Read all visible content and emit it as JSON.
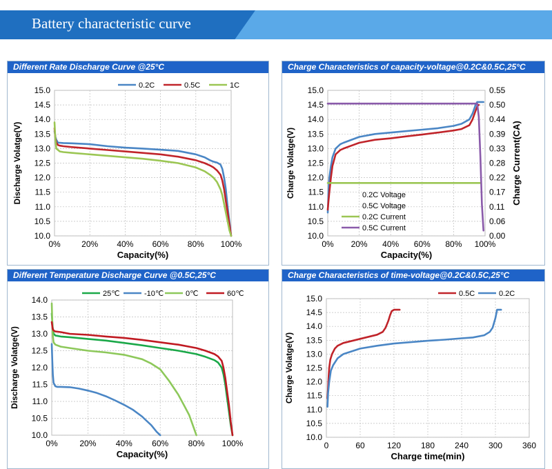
{
  "banner": {
    "title": "Battery characteristic curve"
  },
  "colors": {
    "blue": "#4a86c5",
    "red": "#c0242a",
    "lime": "#9bc653",
    "green": "#1aa848",
    "darkred": "#c01a22",
    "purple": "#8a5aaa",
    "lightgreen": "#8dc85a"
  },
  "chart_data": [
    {
      "type": "line",
      "title": "Different Rate Discharge Curve @25°C",
      "xlabel": "Capacity(%)",
      "ylabel": "Discharge Volatge(V)",
      "xlim": [
        0,
        100
      ],
      "ylim": [
        10.0,
        15.0
      ],
      "xticks": [
        "0%",
        "20%",
        "40%",
        "60%",
        "80%",
        "100%"
      ],
      "yticks": [
        "10.0",
        "10.5",
        "11.0",
        "11.5",
        "12.0",
        "12.5",
        "13.0",
        "13.5",
        "14.0",
        "14.5",
        "15.0"
      ],
      "legend": [
        "0.2C",
        "0.5C",
        "1C"
      ],
      "series": [
        {
          "name": "0.2C",
          "color": "blue",
          "x": [
            0,
            0.5,
            1,
            2,
            3,
            5,
            10,
            20,
            30,
            40,
            50,
            60,
            70,
            80,
            85,
            88,
            90,
            92,
            94,
            95,
            96,
            97,
            98,
            99,
            100
          ],
          "y": [
            13.6,
            13.4,
            13.3,
            13.2,
            13.2,
            13.19,
            13.18,
            13.15,
            13.08,
            13.03,
            13.0,
            12.96,
            12.92,
            12.8,
            12.7,
            12.6,
            12.55,
            12.52,
            12.45,
            12.3,
            12.0,
            11.6,
            11.0,
            10.5,
            10.0
          ]
        },
        {
          "name": "0.5C",
          "color": "red",
          "x": [
            0,
            0.5,
            1,
            2,
            3,
            5,
            10,
            20,
            30,
            40,
            50,
            60,
            70,
            80,
            85,
            88,
            90,
            92,
            94,
            95,
            96,
            97,
            98,
            99,
            100
          ],
          "y": [
            13.7,
            13.35,
            13.2,
            13.12,
            13.1,
            13.08,
            13.05,
            13.0,
            12.95,
            12.9,
            12.85,
            12.8,
            12.72,
            12.6,
            12.5,
            12.42,
            12.35,
            12.25,
            12.1,
            11.9,
            11.6,
            11.2,
            10.8,
            10.4,
            10.0
          ]
        },
        {
          "name": "1C",
          "color": "lime",
          "x": [
            0,
            0.5,
            1,
            2,
            3,
            5,
            10,
            20,
            30,
            40,
            50,
            60,
            70,
            80,
            85,
            88,
            90,
            92,
            94,
            95,
            96,
            97,
            98,
            99,
            100
          ],
          "y": [
            13.9,
            13.3,
            13.0,
            12.95,
            12.9,
            12.88,
            12.85,
            12.8,
            12.75,
            12.7,
            12.65,
            12.58,
            12.5,
            12.35,
            12.22,
            12.1,
            12.0,
            11.85,
            11.6,
            11.4,
            11.1,
            10.8,
            10.5,
            10.2,
            10.0
          ]
        }
      ]
    },
    {
      "type": "line",
      "title": "Charge Characteristics of capacity-voltage@0.2C&0.5C,25°C",
      "xlabel": "Capacity(%)",
      "ylabel": "Charge Volatge(V)",
      "y2label": "Charge Current(CA)",
      "xlim": [
        0,
        100
      ],
      "ylim": [
        10.0,
        15.0
      ],
      "y2lim": [
        0.0,
        0.55
      ],
      "xticks": [
        "0%",
        "20%",
        "40%",
        "60%",
        "80%",
        "100%"
      ],
      "yticks": [
        "10.0",
        "10.5",
        "11.0",
        "11.5",
        "12.0",
        "12.5",
        "13.0",
        "13.5",
        "14.0",
        "14.5",
        "15.0"
      ],
      "y2ticks": [
        "0.00",
        "0.06",
        "0.11",
        "0.17",
        "0.22",
        "0.28",
        "0.33",
        "0.39",
        "0.44",
        "0.50",
        "0.55"
      ],
      "legend": [
        "0.2C Voltage",
        "0.5C Voltage",
        "0.2C Current",
        "0.5C Current"
      ],
      "series": [
        {
          "name": "0.2C Voltage",
          "color": "blue",
          "axis": "left",
          "x": [
            0,
            0.5,
            1,
            2,
            3,
            5,
            8,
            10,
            20,
            30,
            40,
            50,
            60,
            70,
            80,
            85,
            90,
            92,
            94,
            95,
            97,
            99
          ],
          "y": [
            10.8,
            11.5,
            12.0,
            12.4,
            12.7,
            13.0,
            13.15,
            13.2,
            13.4,
            13.5,
            13.55,
            13.6,
            13.65,
            13.7,
            13.78,
            13.85,
            14.0,
            14.2,
            14.5,
            14.6,
            14.6,
            14.6
          ]
        },
        {
          "name": "0.5C Voltage",
          "color": "red",
          "axis": "left",
          "x": [
            0,
            0.5,
            1,
            2,
            3,
            5,
            8,
            10,
            20,
            30,
            40,
            50,
            60,
            70,
            80,
            85,
            90,
            92,
            94,
            95,
            96
          ],
          "y": [
            10.9,
            11.2,
            11.5,
            12.0,
            12.4,
            12.8,
            12.95,
            13.0,
            13.2,
            13.3,
            13.35,
            13.42,
            13.48,
            13.55,
            13.62,
            13.67,
            13.8,
            14.0,
            14.3,
            14.45,
            14.5
          ]
        },
        {
          "name": "0.2C Current",
          "color": "lime",
          "axis": "right",
          "x": [
            0,
            97
          ],
          "y": [
            0.2,
            0.2
          ]
        },
        {
          "name": "0.5C Current",
          "color": "purple",
          "axis": "right",
          "x": [
            0,
            95,
            96,
            97,
            98,
            99
          ],
          "y": [
            0.5,
            0.5,
            0.45,
            0.3,
            0.12,
            0.02
          ]
        }
      ]
    },
    {
      "type": "line",
      "title": "Different Temperature Discharge Curve @0.5C,25°C",
      "xlabel": "Capacity(%)",
      "ylabel": "Discharge Volatge(V)",
      "xlim": [
        0,
        100
      ],
      "ylim": [
        10.0,
        14.0
      ],
      "xticks": [
        "0%",
        "20%",
        "40%",
        "60%",
        "80%",
        "100%"
      ],
      "yticks": [
        "10.0",
        "10.5",
        "11.0",
        "11.5",
        "12.0",
        "12.5",
        "13.0",
        "13.5",
        "14.0"
      ],
      "legend": [
        "25℃",
        "-10℃",
        "0℃",
        "60℃"
      ],
      "series": [
        {
          "name": "25℃",
          "color": "green",
          "x": [
            0,
            0.5,
            1,
            2,
            5,
            10,
            20,
            30,
            40,
            50,
            60,
            70,
            80,
            85,
            90,
            92,
            94,
            95,
            96,
            97,
            98,
            99,
            100
          ],
          "y": [
            13.6,
            13.2,
            13.0,
            12.95,
            12.92,
            12.9,
            12.85,
            12.8,
            12.73,
            12.66,
            12.58,
            12.5,
            12.4,
            12.32,
            12.22,
            12.15,
            12.0,
            11.8,
            11.5,
            11.1,
            10.7,
            10.3,
            10.0
          ]
        },
        {
          "name": "-10℃",
          "color": "blue",
          "x": [
            0,
            0.3,
            0.6,
            1,
            2,
            3,
            5,
            10,
            15,
            20,
            25,
            30,
            35,
            40,
            45,
            50,
            52,
            55,
            58,
            60
          ],
          "y": [
            12.7,
            12.2,
            11.8,
            11.55,
            11.45,
            11.43,
            11.43,
            11.42,
            11.38,
            11.32,
            11.25,
            11.15,
            11.03,
            10.9,
            10.75,
            10.55,
            10.45,
            10.3,
            10.1,
            10.0
          ]
        },
        {
          "name": "0℃",
          "color": "lightgreen",
          "x": [
            0,
            0.5,
            1,
            2,
            5,
            10,
            20,
            30,
            40,
            50,
            55,
            60,
            65,
            70,
            73,
            76,
            78,
            80
          ],
          "y": [
            13.9,
            13.0,
            12.75,
            12.68,
            12.62,
            12.58,
            12.5,
            12.45,
            12.38,
            12.25,
            12.12,
            11.95,
            11.6,
            11.2,
            10.9,
            10.6,
            10.3,
            10.0
          ]
        },
        {
          "name": "60℃",
          "color": "darkred",
          "x": [
            0,
            0.5,
            1,
            2,
            5,
            10,
            20,
            30,
            40,
            50,
            60,
            70,
            80,
            85,
            88,
            90,
            92,
            94,
            95,
            96,
            97,
            98,
            99,
            100
          ],
          "y": [
            13.35,
            13.15,
            13.1,
            13.07,
            13.05,
            13.0,
            12.97,
            12.92,
            12.88,
            12.82,
            12.75,
            12.68,
            12.58,
            12.5,
            12.44,
            12.4,
            12.33,
            12.2,
            12.0,
            11.7,
            11.3,
            10.9,
            10.4,
            10.0
          ]
        }
      ]
    },
    {
      "type": "line",
      "title": "Charge Characteristics of time-voltage@0.2C&0.5C,25°C",
      "xlabel": "Charge time(min)",
      "ylabel": "Charge Volatge(V)",
      "xlim": [
        0,
        360
      ],
      "ylim": [
        10.0,
        15.0
      ],
      "xticks": [
        "0",
        "60",
        "120",
        "180",
        "240",
        "300",
        "360"
      ],
      "yticks": [
        "10.0",
        "10.5",
        "11.0",
        "11.5",
        "12.0",
        "12.5",
        "13.0",
        "13.5",
        "14.0",
        "14.5",
        "15.0"
      ],
      "legend": [
        "0.5C",
        "0.2C"
      ],
      "series": [
        {
          "name": "0.5C",
          "color": "red",
          "x": [
            2,
            3,
            4,
            5,
            7,
            10,
            15,
            20,
            30,
            40,
            60,
            80,
            90,
            100,
            105,
            110,
            113,
            116,
            120,
            125,
            130
          ],
          "y": [
            11.4,
            11.8,
            12.2,
            12.5,
            12.8,
            13.0,
            13.2,
            13.3,
            13.4,
            13.45,
            13.55,
            13.65,
            13.7,
            13.8,
            13.95,
            14.2,
            14.4,
            14.55,
            14.6,
            14.6,
            14.6
          ]
        },
        {
          "name": "0.2C",
          "color": "blue",
          "x": [
            2,
            3,
            5,
            8,
            12,
            20,
            30,
            45,
            60,
            90,
            120,
            150,
            180,
            210,
            240,
            260,
            280,
            290,
            295,
            300,
            303,
            306,
            310
          ],
          "y": [
            11.1,
            11.6,
            12.0,
            12.4,
            12.6,
            12.85,
            13.0,
            13.1,
            13.2,
            13.3,
            13.38,
            13.43,
            13.48,
            13.52,
            13.57,
            13.6,
            13.68,
            13.8,
            13.95,
            14.3,
            14.6,
            14.6,
            14.6
          ]
        }
      ]
    }
  ]
}
